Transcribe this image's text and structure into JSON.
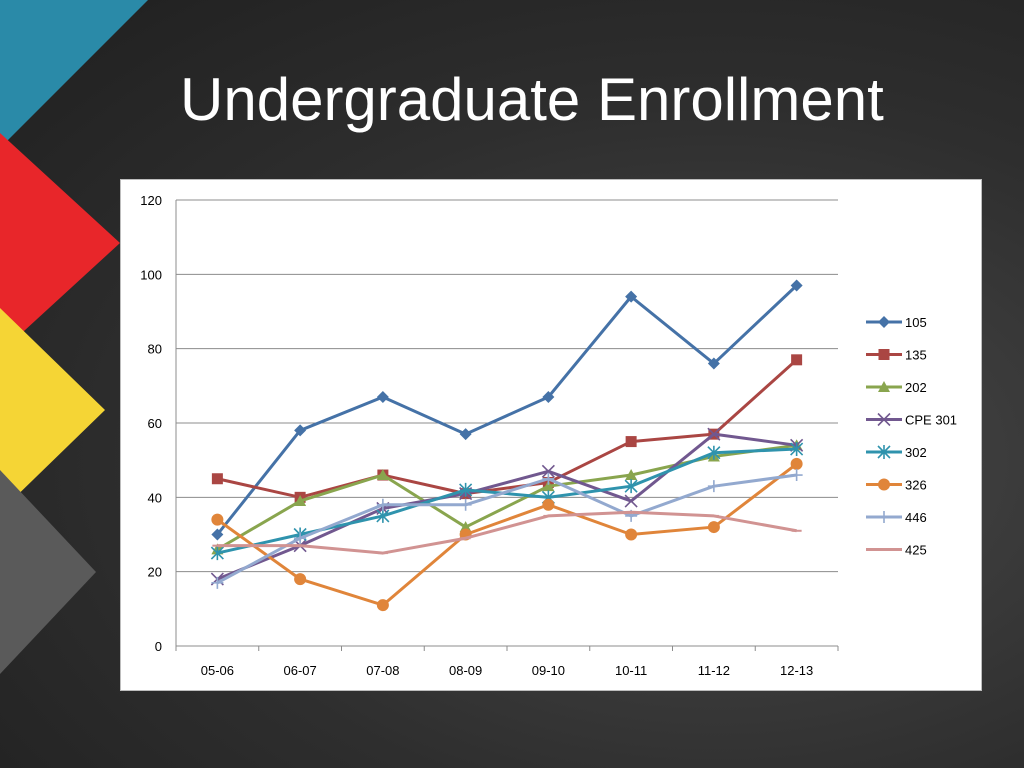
{
  "slide": {
    "title": "Undergraduate Enrollment"
  },
  "colors": {
    "background": "#2e2e2e",
    "deco_teal": "#2a8aa8",
    "deco_red": "#e8262a",
    "deco_yellow": "#f7d833",
    "deco_gray": "#5a5a5a"
  },
  "chart_data": {
    "type": "line",
    "title": "",
    "xlabel": "",
    "ylabel": "",
    "ylim": [
      0,
      120
    ],
    "yticks": [
      0,
      20,
      40,
      60,
      80,
      100,
      120
    ],
    "grid": true,
    "legend_position": "right",
    "categories": [
      "05-06",
      "06-07",
      "07-08",
      "08-09",
      "09-10",
      "10-11",
      "11-12",
      "12-13"
    ],
    "series": [
      {
        "name": "105",
        "color": "#4572a7",
        "marker": "diamond",
        "values": [
          30,
          58,
          67,
          57,
          67,
          94,
          76,
          97
        ]
      },
      {
        "name": "135",
        "color": "#aa4643",
        "marker": "square",
        "values": [
          45,
          40,
          46,
          41,
          44,
          55,
          57,
          77
        ]
      },
      {
        "name": "202",
        "color": "#89a54e",
        "marker": "triangle",
        "values": [
          26,
          39,
          46,
          32,
          43,
          46,
          51,
          54
        ]
      },
      {
        "name": "CPE 301",
        "color": "#71588f",
        "marker": "x",
        "values": [
          18,
          27,
          37,
          41,
          47,
          39,
          57,
          54
        ]
      },
      {
        "name": "302",
        "color": "#2f93ad",
        "marker": "star",
        "values": [
          25,
          30,
          35,
          42,
          40,
          43,
          52,
          53
        ]
      },
      {
        "name": "326",
        "color": "#e0853a",
        "marker": "circle",
        "values": [
          34,
          18,
          11,
          30,
          38,
          30,
          32,
          49
        ]
      },
      {
        "name": "446",
        "color": "#93a9cf",
        "marker": "plus",
        "values": [
          17,
          29,
          38,
          38,
          45,
          35,
          43,
          46
        ]
      },
      {
        "name": "425",
        "color": "#d19392",
        "marker": "dash",
        "values": [
          27,
          27,
          25,
          29,
          35,
          36,
          35,
          31
        ]
      }
    ]
  }
}
